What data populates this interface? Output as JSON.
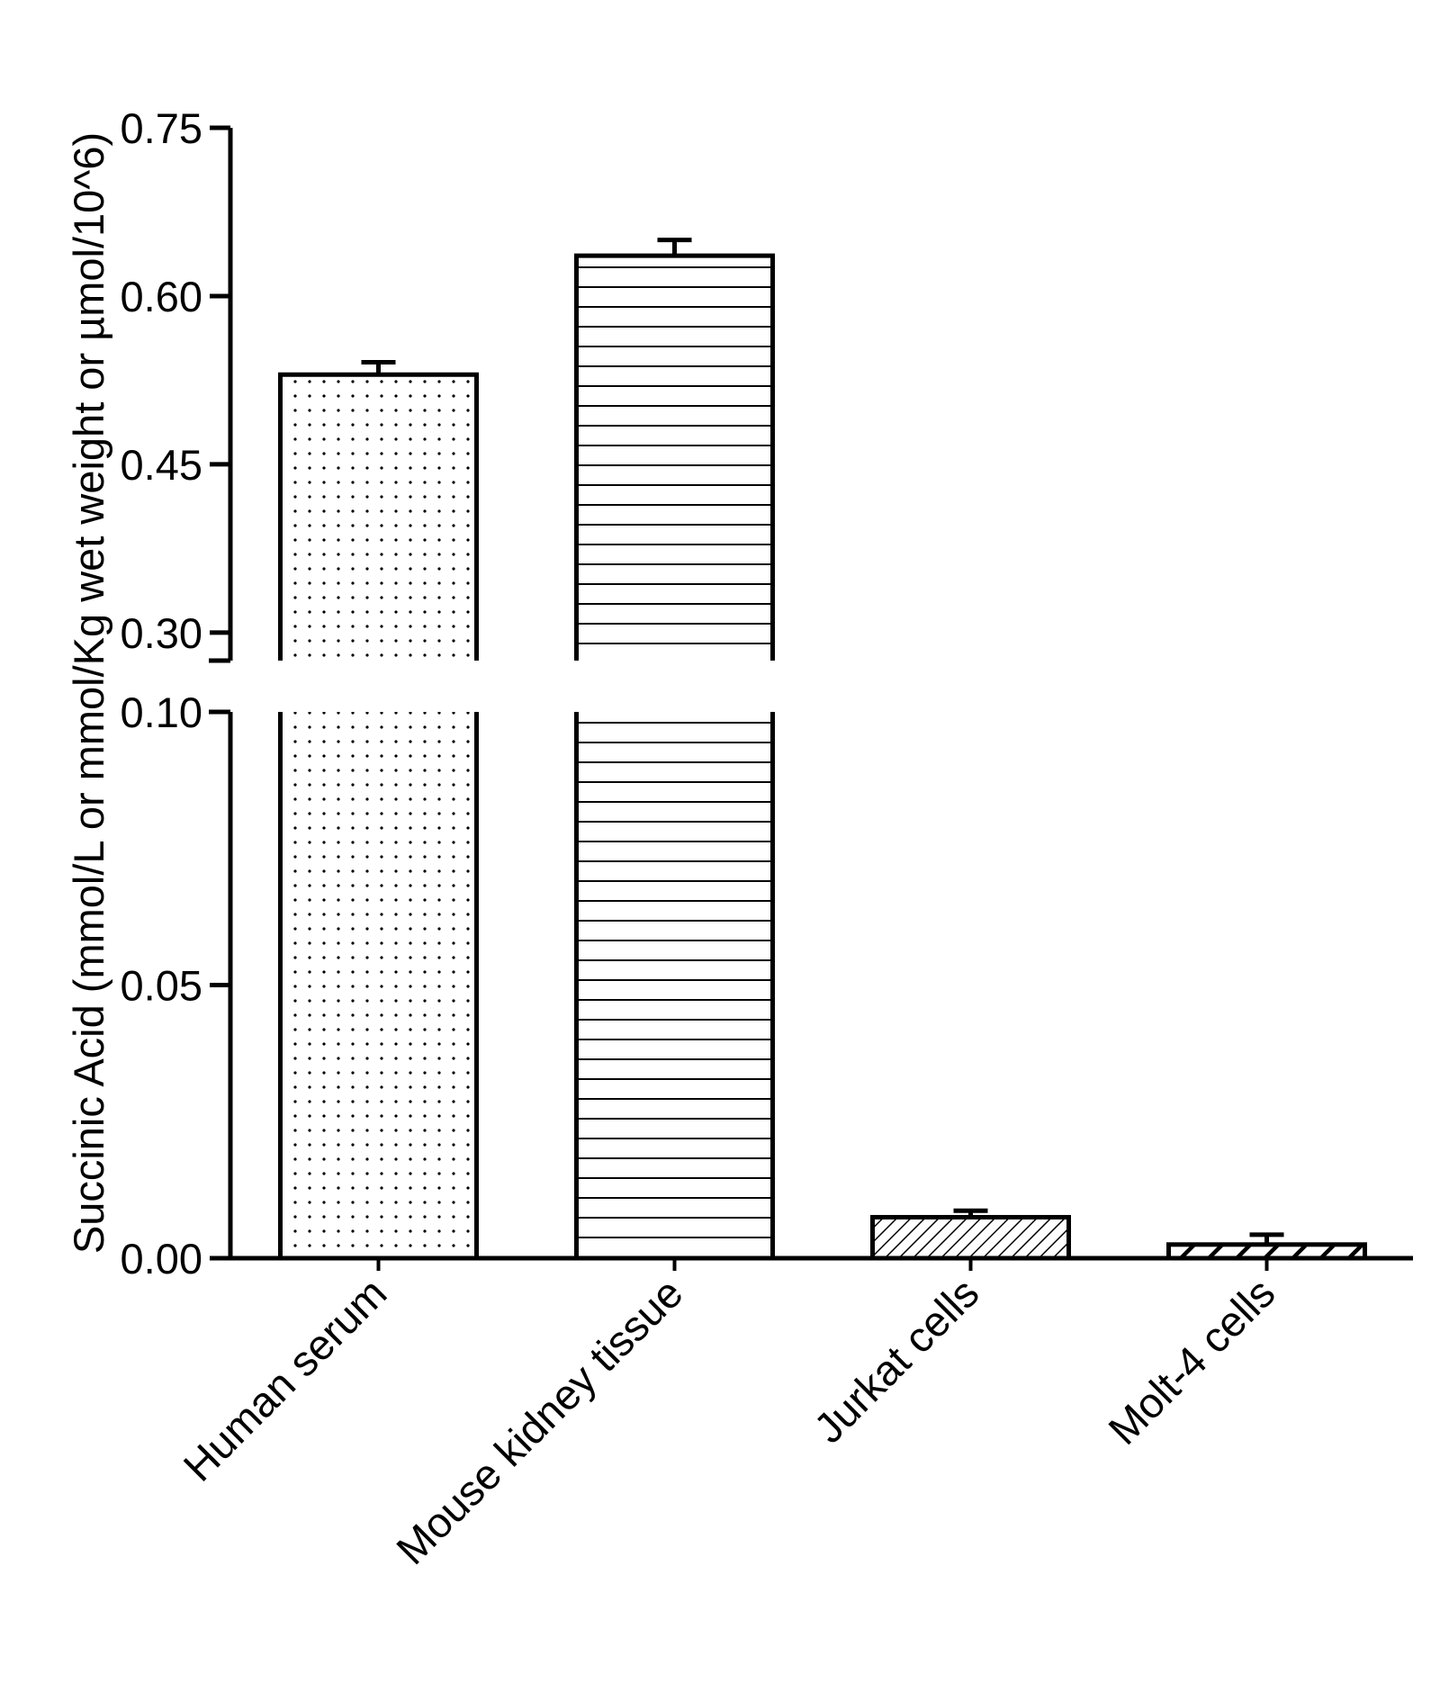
{
  "chart_data": {
    "type": "bar",
    "categories": [
      "Human serum",
      "Mouse kidney tissue",
      "Jurkat cells",
      "Molt-4 cells"
    ],
    "values": [
      0.53,
      0.636,
      0.0075,
      0.0025
    ],
    "error_bars": [
      0.011,
      0.014,
      0.0012,
      0.0018
    ],
    "patterns": [
      "dots",
      "horizontal-lines",
      "diagonal-hatch",
      "diagonal-hatch-bold"
    ],
    "ylabel": "Succinic Acid (mmol/L or mmol/Kg wet weight or µmol/10^6)",
    "xlabel": "",
    "title": "",
    "y_axis_break": true,
    "ylim_lower_segment": [
      0,
      0.1
    ],
    "ylim_upper_segment": [
      0.275,
      0.75
    ],
    "yticks_lower": [
      0.0,
      0.05,
      0.1
    ],
    "yticks_lower_labels": [
      "0.00",
      "0.05",
      "0.10"
    ],
    "yticks_upper": [
      0.3,
      0.45,
      0.6,
      0.75
    ],
    "yticks_upper_labels": [
      "0.30",
      "0.45",
      "0.60",
      "0.75"
    ],
    "grid": false,
    "legend": "none",
    "bar_color": "#ffffff",
    "line_color": "#000000"
  }
}
